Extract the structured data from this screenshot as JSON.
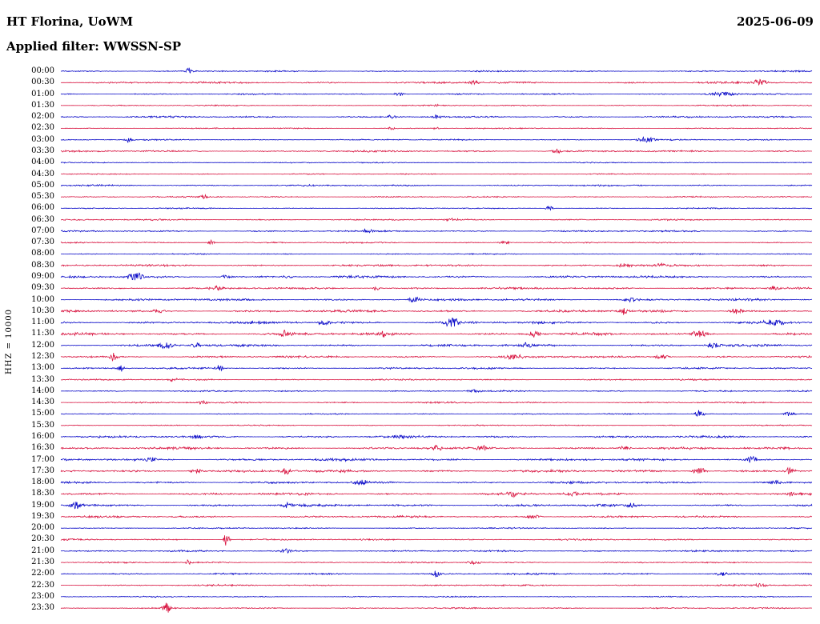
{
  "header": {
    "station": "HT Florina, UoWM",
    "date": "2025-06-09",
    "filter": "Applied filter: WWSSN-SP"
  },
  "chart_data": {
    "type": "line",
    "subtype": "helicorder-seismogram",
    "title": "HT Florina, UoWM",
    "date": "2025-06-09",
    "filter": "WWSSN-SP",
    "channel": "HHZ",
    "ylabel": "HHZ = 10000",
    "row_duration_minutes": 30,
    "x_range_per_row_minutes": [
      0,
      30
    ],
    "grid": false,
    "legend": "none",
    "colors": {
      "blue": "#0a0ac8",
      "red": "#d81440"
    },
    "rows": [
      {
        "time": "00:00",
        "color": "blue",
        "amp": 0.7,
        "events": [
          [
            0.17,
            3.0,
            0.004
          ]
        ]
      },
      {
        "time": "00:30",
        "color": "red",
        "amp": 1.0,
        "events": [
          [
            0.55,
            1.5,
            0.01
          ],
          [
            0.93,
            2.5,
            0.01
          ]
        ]
      },
      {
        "time": "01:00",
        "color": "blue",
        "amp": 0.7,
        "events": [
          [
            0.45,
            1.8,
            0.006
          ],
          [
            0.88,
            1.5,
            0.02
          ]
        ]
      },
      {
        "time": "01:30",
        "color": "red",
        "amp": 0.6,
        "events": [
          [
            0.5,
            1.2,
            0.005
          ]
        ]
      },
      {
        "time": "02:00",
        "color": "blue",
        "amp": 0.9,
        "events": [
          [
            0.44,
            2.0,
            0.005
          ],
          [
            0.5,
            1.6,
            0.004
          ]
        ]
      },
      {
        "time": "02:30",
        "color": "red",
        "amp": 0.6,
        "events": [
          [
            0.44,
            1.5,
            0.004
          ],
          [
            0.5,
            1.3,
            0.004
          ]
        ]
      },
      {
        "time": "03:00",
        "color": "blue",
        "amp": 0.7,
        "events": [
          [
            0.09,
            2.2,
            0.005
          ],
          [
            0.78,
            2.2,
            0.012
          ]
        ]
      },
      {
        "time": "03:30",
        "color": "red",
        "amp": 0.9,
        "events": [
          [
            0.66,
            2.0,
            0.006
          ]
        ]
      },
      {
        "time": "04:00",
        "color": "blue",
        "amp": 0.55,
        "events": []
      },
      {
        "time": "04:30",
        "color": "red",
        "amp": 0.55,
        "events": []
      },
      {
        "time": "05:00",
        "color": "blue",
        "amp": 0.8,
        "events": []
      },
      {
        "time": "05:30",
        "color": "red",
        "amp": 0.65,
        "events": [
          [
            0.19,
            2.0,
            0.004
          ]
        ]
      },
      {
        "time": "06:00",
        "color": "blue",
        "amp": 0.6,
        "events": [
          [
            0.65,
            2.2,
            0.005
          ]
        ]
      },
      {
        "time": "06:30",
        "color": "red",
        "amp": 0.75,
        "events": [
          [
            0.52,
            1.3,
            0.01
          ]
        ]
      },
      {
        "time": "07:00",
        "color": "blue",
        "amp": 0.8,
        "events": [
          [
            0.41,
            1.6,
            0.008
          ]
        ]
      },
      {
        "time": "07:30",
        "color": "red",
        "amp": 0.7,
        "events": [
          [
            0.2,
            2.4,
            0.004
          ],
          [
            0.59,
            1.3,
            0.008
          ]
        ]
      },
      {
        "time": "08:00",
        "color": "blue",
        "amp": 0.6,
        "events": []
      },
      {
        "time": "08:30",
        "color": "red",
        "amp": 1.0,
        "events": [
          [
            0.75,
            2.0,
            0.01
          ],
          [
            0.8,
            1.6,
            0.008
          ]
        ]
      },
      {
        "time": "09:00",
        "color": "blue",
        "amp": 1.2,
        "events": [
          [
            0.1,
            3.6,
            0.01
          ],
          [
            0.22,
            1.6,
            0.008
          ],
          [
            0.3,
            1.5,
            0.006
          ]
        ]
      },
      {
        "time": "09:30",
        "color": "red",
        "amp": 1.1,
        "events": [
          [
            0.21,
            1.8,
            0.006
          ],
          [
            0.42,
            1.6,
            0.006
          ],
          [
            0.95,
            1.8,
            0.008
          ]
        ]
      },
      {
        "time": "10:00",
        "color": "blue",
        "amp": 1.1,
        "events": [
          [
            0.47,
            2.6,
            0.008
          ],
          [
            0.76,
            1.6,
            0.01
          ]
        ]
      },
      {
        "time": "10:30",
        "color": "red",
        "amp": 1.2,
        "events": [
          [
            0.13,
            1.6,
            0.008
          ],
          [
            0.75,
            3.0,
            0.006
          ],
          [
            0.9,
            2.0,
            0.01
          ]
        ]
      },
      {
        "time": "11:00",
        "color": "blue",
        "amp": 1.3,
        "events": [
          [
            0.35,
            1.8,
            0.008
          ],
          [
            0.52,
            4.0,
            0.01
          ],
          [
            0.95,
            2.6,
            0.012
          ]
        ]
      },
      {
        "time": "11:30",
        "color": "red",
        "amp": 1.3,
        "events": [
          [
            0.3,
            2.8,
            0.008
          ],
          [
            0.43,
            2.0,
            0.008
          ],
          [
            0.63,
            3.0,
            0.008
          ],
          [
            0.85,
            2.8,
            0.01
          ]
        ]
      },
      {
        "time": "12:00",
        "color": "blue",
        "amp": 1.2,
        "events": [
          [
            0.14,
            2.6,
            0.01
          ],
          [
            0.18,
            2.4,
            0.006
          ],
          [
            0.62,
            1.8,
            0.01
          ],
          [
            0.87,
            2.4,
            0.01
          ]
        ]
      },
      {
        "time": "12:30",
        "color": "red",
        "amp": 1.1,
        "events": [
          [
            0.07,
            3.0,
            0.005
          ],
          [
            0.6,
            2.0,
            0.015
          ],
          [
            0.8,
            1.6,
            0.01
          ]
        ]
      },
      {
        "time": "13:00",
        "color": "blue",
        "amp": 0.9,
        "events": [
          [
            0.08,
            3.0,
            0.004
          ],
          [
            0.21,
            2.2,
            0.006
          ]
        ]
      },
      {
        "time": "13:30",
        "color": "red",
        "amp": 0.8,
        "events": [
          [
            0.15,
            1.8,
            0.005
          ]
        ]
      },
      {
        "time": "14:00",
        "color": "blue",
        "amp": 0.7,
        "events": [
          [
            0.55,
            1.2,
            0.01
          ]
        ]
      },
      {
        "time": "14:30",
        "color": "red",
        "amp": 0.8,
        "events": [
          [
            0.19,
            2.4,
            0.005
          ]
        ]
      },
      {
        "time": "15:00",
        "color": "blue",
        "amp": 0.6,
        "events": [
          [
            0.85,
            3.0,
            0.006
          ],
          [
            0.97,
            1.6,
            0.008
          ]
        ]
      },
      {
        "time": "15:30",
        "color": "red",
        "amp": 0.6,
        "events": []
      },
      {
        "time": "16:00",
        "color": "blue",
        "amp": 1.1,
        "events": [
          [
            0.18,
            1.8,
            0.008
          ],
          [
            0.45,
            1.6,
            0.01
          ]
        ]
      },
      {
        "time": "16:30",
        "color": "red",
        "amp": 1.2,
        "events": [
          [
            0.5,
            2.6,
            0.008
          ],
          [
            0.56,
            3.5,
            0.006
          ],
          [
            0.75,
            1.8,
            0.008
          ]
        ]
      },
      {
        "time": "17:00",
        "color": "blue",
        "amp": 1.2,
        "events": [
          [
            0.12,
            1.8,
            0.008
          ],
          [
            0.92,
            3.2,
            0.006
          ]
        ]
      },
      {
        "time": "17:30",
        "color": "red",
        "amp": 1.3,
        "events": [
          [
            0.18,
            2.0,
            0.008
          ],
          [
            0.3,
            2.8,
            0.006
          ],
          [
            0.85,
            3.5,
            0.008
          ],
          [
            0.97,
            2.8,
            0.008
          ]
        ]
      },
      {
        "time": "18:00",
        "color": "blue",
        "amp": 1.1,
        "events": [
          [
            0.4,
            1.8,
            0.01
          ],
          [
            0.95,
            2.0,
            0.008
          ]
        ]
      },
      {
        "time": "18:30",
        "color": "red",
        "amp": 1.2,
        "events": [
          [
            0.6,
            3.0,
            0.006
          ],
          [
            0.68,
            2.0,
            0.008
          ],
          [
            0.97,
            2.4,
            0.006
          ]
        ]
      },
      {
        "time": "19:00",
        "color": "blue",
        "amp": 1.2,
        "events": [
          [
            0.02,
            3.2,
            0.008
          ],
          [
            0.3,
            2.0,
            0.01
          ],
          [
            0.76,
            2.0,
            0.008
          ]
        ]
      },
      {
        "time": "19:30",
        "color": "red",
        "amp": 1.0,
        "events": [
          [
            0.63,
            1.8,
            0.01
          ]
        ]
      },
      {
        "time": "20:00",
        "color": "blue",
        "amp": 0.7,
        "events": []
      },
      {
        "time": "20:30",
        "color": "red",
        "amp": 0.8,
        "events": [
          [
            0.22,
            6.0,
            0.004
          ]
        ]
      },
      {
        "time": "21:00",
        "color": "blue",
        "amp": 0.8,
        "events": [
          [
            0.3,
            1.6,
            0.012
          ]
        ]
      },
      {
        "time": "21:30",
        "color": "red",
        "amp": 0.7,
        "events": [
          [
            0.17,
            2.2,
            0.004
          ],
          [
            0.55,
            1.4,
            0.01
          ]
        ]
      },
      {
        "time": "22:00",
        "color": "blue",
        "amp": 0.9,
        "events": [
          [
            0.5,
            2.6,
            0.006
          ],
          [
            0.88,
            1.8,
            0.008
          ]
        ]
      },
      {
        "time": "22:30",
        "color": "red",
        "amp": 0.8,
        "events": [
          [
            0.93,
            1.6,
            0.01
          ]
        ]
      },
      {
        "time": "23:00",
        "color": "blue",
        "amp": 0.6,
        "events": []
      },
      {
        "time": "23:30",
        "color": "red",
        "amp": 0.7,
        "events": [
          [
            0.14,
            4.5,
            0.005
          ]
        ]
      }
    ]
  }
}
